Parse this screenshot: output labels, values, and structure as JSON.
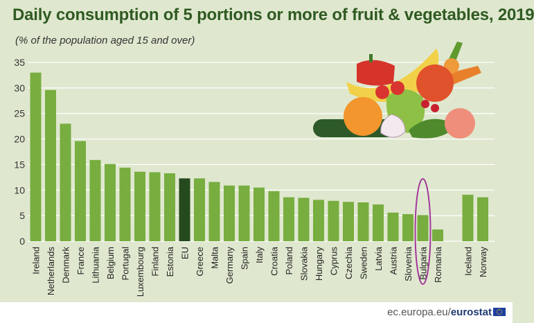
{
  "header": {
    "title": "Daily consumption of 5 portions or more of fruit & vegetables, 2019",
    "subtitle": "(% of the population aged 15 and over)"
  },
  "footer": {
    "source_site": "ec.europa.eu/",
    "source_brand": "eurostat"
  },
  "colors": {
    "bar": "#78ad3f",
    "bar_eu": "#254a1d",
    "highlight_ellipse": "#a3389a",
    "background": "#dfe8cf",
    "grid": "#ffffff"
  },
  "chart_data": {
    "type": "bar",
    "categories": [
      "Ireland",
      "Netherlands",
      "Denmark",
      "France",
      "Lithuania",
      "Belgium",
      "Portugal",
      "Luxembourg",
      "Finland",
      "Estonia",
      "EU",
      "Greece",
      "Malta",
      "Germany",
      "Spain",
      "Italy",
      "Croatia",
      "Poland",
      "Slovakia",
      "Hungary",
      "Cyprus",
      "Czechia",
      "Sweden",
      "Latvia",
      "Austria",
      "Slovenia",
      "Bulgaria",
      "Romania",
      "Iceland",
      "Norway"
    ],
    "values": [
      33.0,
      29.6,
      23.0,
      19.6,
      15.9,
      15.1,
      14.4,
      13.6,
      13.5,
      13.3,
      12.3,
      12.3,
      11.6,
      10.9,
      10.9,
      10.5,
      9.8,
      8.6,
      8.5,
      8.1,
      7.9,
      7.7,
      7.6,
      7.2,
      5.6,
      5.3,
      5.1,
      2.3,
      9.1,
      8.6
    ],
    "highlighted_category": "EU",
    "circled_category": "Bulgaria",
    "group_gap_before": "Iceland",
    "ylim": [
      0,
      35
    ],
    "yticks": [
      0,
      5,
      10,
      15,
      20,
      25,
      30,
      35
    ],
    "grid": true,
    "xlabel": "",
    "ylabel": ""
  },
  "illustration": {
    "name": "fruit-and-vegetables-illustration",
    "items": [
      "pepper",
      "banana",
      "tomato",
      "carrot",
      "strawberry",
      "pear",
      "orange",
      "garlic",
      "cucumber",
      "peach",
      "lettuce",
      "cherry"
    ]
  }
}
